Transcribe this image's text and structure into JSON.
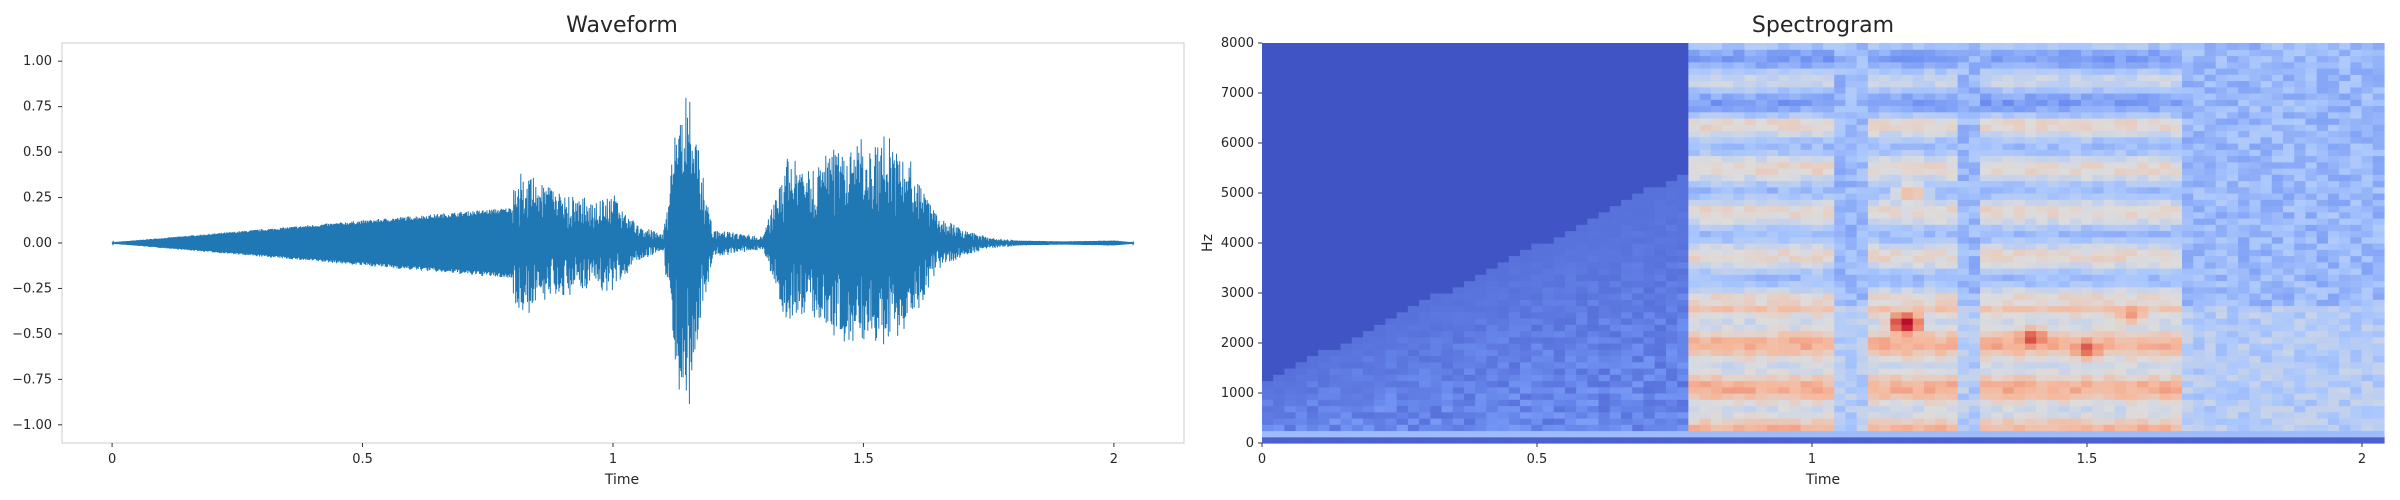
{
  "chart_data": [
    {
      "type": "line",
      "title": "Waveform",
      "xlabel": "Time",
      "ylabel": "",
      "xlim": [
        -0.1,
        2.14
      ],
      "ylim": [
        -1.1,
        1.1
      ],
      "x_ticks": [
        0,
        0.5,
        1,
        1.5,
        2
      ],
      "x_tick_labels": [
        "0",
        "0.5",
        "1",
        "1.5",
        "2"
      ],
      "y_ticks": [
        1.0,
        0.75,
        0.5,
        0.25,
        0.0,
        -0.25,
        -0.5,
        -0.75,
        -1.0
      ],
      "y_tick_labels": [
        "1.00",
        "0.75",
        "0.50",
        "0.25",
        "0.00",
        "−0.25",
        "−0.50",
        "−0.75",
        "−1.00"
      ],
      "grid": false,
      "color": "#1f77b4",
      "series": [
        {
          "x": [
            0,
            0.83,
            0.86,
            0.9,
            0.95,
            1.0,
            1.05,
            1.1,
            1.13,
            1.15,
            1.17,
            1.2,
            1.25,
            1.3,
            1.35,
            1.4,
            1.45,
            1.5,
            1.55,
            1.6,
            1.65,
            1.7,
            1.75,
            1.8,
            1.9,
            2.0,
            2.04
          ],
          "values": [
            0.0,
            0.4,
            0.35,
            0.3,
            0.25,
            0.28,
            0.1,
            0.05,
            0.8,
            0.98,
            0.55,
            0.08,
            0.06,
            0.04,
            0.5,
            0.45,
            0.55,
            0.6,
            0.6,
            0.45,
            0.15,
            0.08,
            0.03,
            0.02,
            0.01,
            0.02,
            0.0
          ]
        }
      ]
    },
    {
      "type": "heatmap",
      "title": "Spectrogram",
      "xlabel": "Time",
      "ylabel": "Hz",
      "xlim": [
        0,
        2.04
      ],
      "ylim": [
        0,
        8000
      ],
      "x_ticks": [
        0,
        0.5,
        1,
        1.5,
        2
      ],
      "x_tick_labels": [
        "0",
        "0.5",
        "1",
        "1.5",
        "2"
      ],
      "y_ticks": [
        0,
        1000,
        2000,
        3000,
        4000,
        5000,
        6000,
        7000,
        8000
      ],
      "y_tick_labels": [
        "0",
        "1000",
        "2000",
        "3000",
        "4000",
        "5000",
        "6000",
        "7000",
        "8000"
      ],
      "colormap": "coolwarm",
      "colormap_stops": [
        "#3b4cc0",
        "#6f91f2",
        "#aac7fd",
        "#dddcdc",
        "#f6b89c",
        "#e7745b",
        "#b40426"
      ],
      "speech_segments": [
        [
          0.78,
          1.05
        ],
        [
          1.1,
          1.26
        ],
        [
          1.31,
          1.68
        ]
      ],
      "hot_spots": [
        {
          "t": 1.17,
          "f": 2400,
          "level": 1.0
        },
        {
          "t": 1.4,
          "f": 2100,
          "level": 0.9
        },
        {
          "t": 1.5,
          "f": 1900,
          "level": 0.88
        },
        {
          "t": 1.58,
          "f": 2600,
          "level": 0.75
        },
        {
          "t": 1.18,
          "f": 5000,
          "level": 0.65
        },
        {
          "t": 0.88,
          "f": 1800,
          "level": 0.62
        }
      ]
    }
  ]
}
